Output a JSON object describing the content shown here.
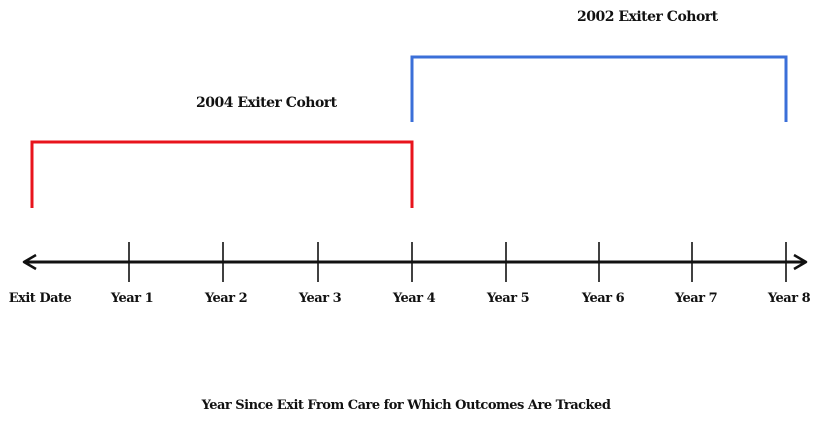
{
  "timeline": {
    "ticks": [
      "Exit Date",
      "Year 1",
      "Year 2",
      "Year 3",
      "Year 4",
      "Year 5",
      "Year 6",
      "Year 7",
      "Year 8"
    ],
    "axis_title": "Year Since Exit From Care for Which Outcomes Are Tracked"
  },
  "cohorts": {
    "c2004": {
      "label": "2004 Exiter Cohort",
      "from_tick": 0,
      "to_tick": 4,
      "color": "#e8141c"
    },
    "c2002": {
      "label": "2002 Exiter Cohort",
      "from_tick": 4,
      "to_tick": 8,
      "color": "#3b6fd8"
    }
  },
  "colors": {
    "axis": "#111111"
  }
}
